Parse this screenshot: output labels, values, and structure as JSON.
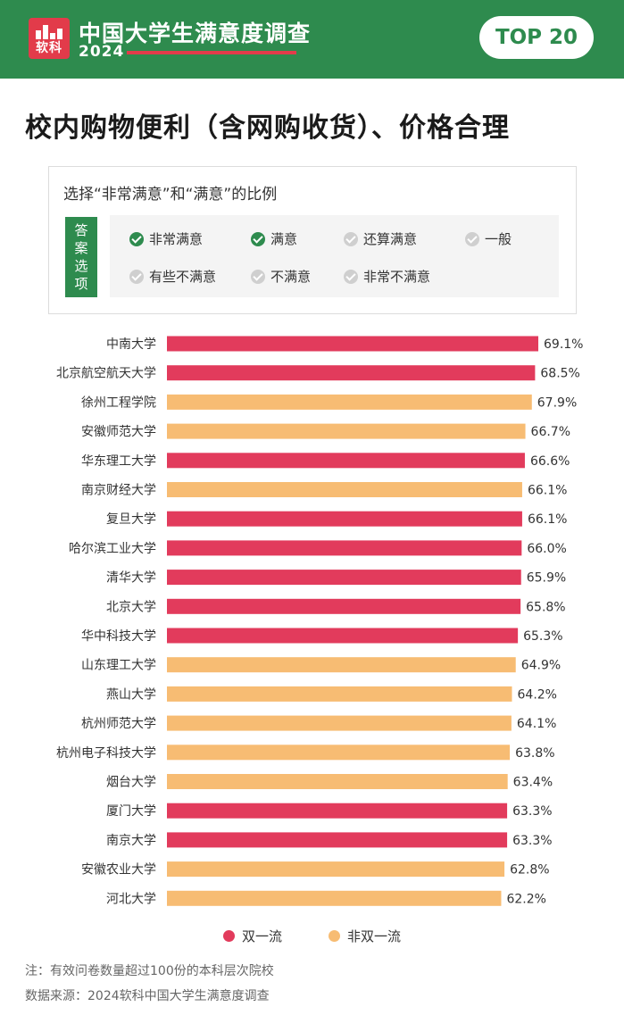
{
  "header": {
    "logo_text": "软科",
    "brand_title": "中国大学生满意度调查",
    "brand_year": "2024",
    "badge": "TOP 20",
    "colors": {
      "green": "#2e8b4e",
      "red": "#e23b4a"
    }
  },
  "title": "校内购物便利（含网购收货）、价格合理",
  "criteria": {
    "heading": "选择“非常满意”和“满意”的比例",
    "tag_chars": [
      "答",
      "案",
      "选",
      "项"
    ],
    "options": [
      {
        "label": "非常满意",
        "checked": true
      },
      {
        "label": "满意",
        "checked": true
      },
      {
        "label": "还算满意",
        "checked": false
      },
      {
        "label": "一般",
        "checked": false
      },
      {
        "label": "有些不满意",
        "checked": false
      },
      {
        "label": "不满意",
        "checked": false
      },
      {
        "label": "非常不满意",
        "checked": false
      }
    ]
  },
  "chart_data": {
    "type": "bar",
    "orientation": "horizontal",
    "categories": [
      "中南大学",
      "北京航空航天大学",
      "徐州工程学院",
      "安徽师范大学",
      "华东理工大学",
      "南京财经大学",
      "复旦大学",
      "哈尔滨工业大学",
      "清华大学",
      "北京大学",
      "华中科技大学",
      "山东理工大学",
      "燕山大学",
      "杭州师范大学",
      "杭州电子科技大学",
      "烟台大学",
      "厦门大学",
      "南京大学",
      "安徽农业大学",
      "河北大学"
    ],
    "values": [
      69.1,
      68.5,
      67.9,
      66.7,
      66.6,
      66.1,
      66.1,
      66.0,
      65.9,
      65.8,
      65.3,
      64.9,
      64.2,
      64.1,
      63.8,
      63.4,
      63.3,
      63.3,
      62.8,
      62.2
    ],
    "value_labels": [
      "69.1%",
      "68.5%",
      "67.9%",
      "66.7%",
      "66.6%",
      "66.1%",
      "66.1%",
      "66.0%",
      "65.9%",
      "65.8%",
      "65.3%",
      "64.9%",
      "64.2%",
      "64.1%",
      "63.8%",
      "63.4%",
      "63.3%",
      "63.3%",
      "62.8%",
      "62.2%"
    ],
    "groups": [
      "双一流",
      "双一流",
      "非双一流",
      "非双一流",
      "双一流",
      "非双一流",
      "双一流",
      "双一流",
      "双一流",
      "双一流",
      "双一流",
      "非双一流",
      "非双一流",
      "非双一流",
      "非双一流",
      "非双一流",
      "双一流",
      "双一流",
      "非双一流",
      "非双一流"
    ],
    "legend": [
      {
        "name": "双一流",
        "color": "#e23b5c"
      },
      {
        "name": "非双一流",
        "color": "#f7bc73"
      }
    ],
    "legend_position": "bottom",
    "grid": false
  },
  "footnotes": {
    "note": "注：有效问卷数量超过100份的本科层次院校",
    "source": "数据来源：2024软科中国大学生满意度调查"
  }
}
